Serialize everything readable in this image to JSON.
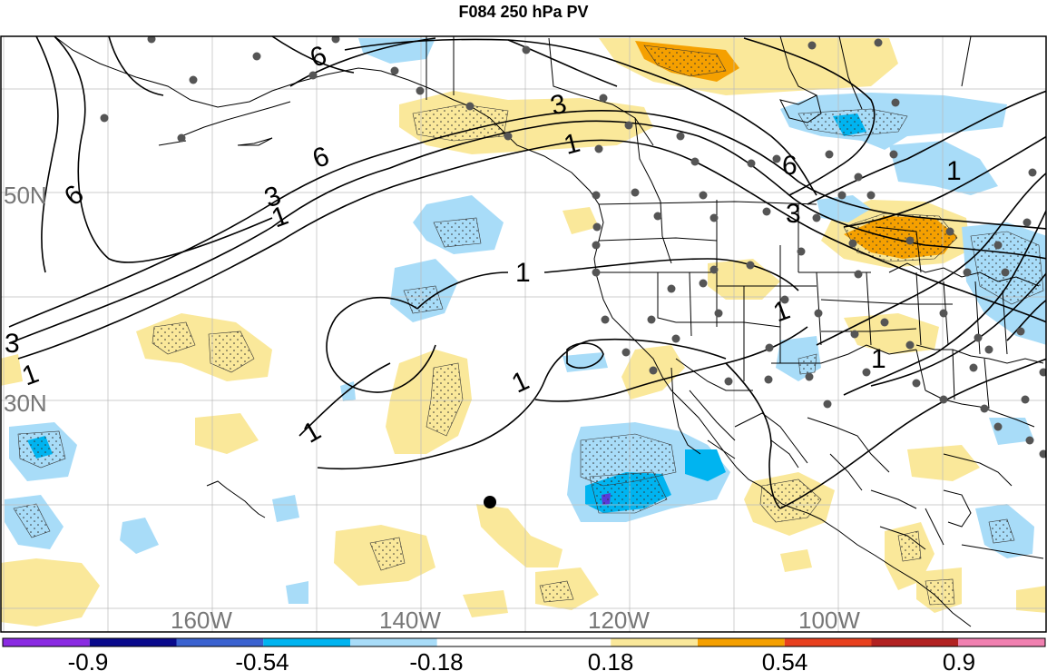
{
  "title": "F084 250 hPa PV",
  "latitude_labels": [
    "50N",
    "30N"
  ],
  "longitude_labels": [
    "160W",
    "140W",
    "120W",
    "100W"
  ],
  "contour_labels": [
    "6",
    "3",
    "1",
    "6",
    "3",
    "1",
    "6",
    "3",
    "1",
    "1",
    "1",
    "1",
    "1",
    "6",
    "3",
    "1",
    "1",
    "1"
  ],
  "colorbar": {
    "tick_labels": [
      "-0.9",
      "-0.54",
      "-0.18",
      "0.18",
      "0.54",
      "0.9"
    ],
    "colors": [
      "#8a2be2",
      "#0a0a8c",
      "#3a62d0",
      "#00b4f0",
      "#a8dcf8",
      "#ffffff",
      "#fae89a",
      "#f5a000",
      "#e8401e",
      "#b22222",
      "#f080b0"
    ]
  },
  "colors": {
    "negative_light": "#a8dcf8",
    "negative_medium": "#00b4f0",
    "negative_strong": "#5a3ad8",
    "positive_light": "#fae89a",
    "positive_medium": "#f5a000",
    "contour": "#000000",
    "boundary": "#000000",
    "grid": "#bbbbbb",
    "station": "#555555"
  }
}
